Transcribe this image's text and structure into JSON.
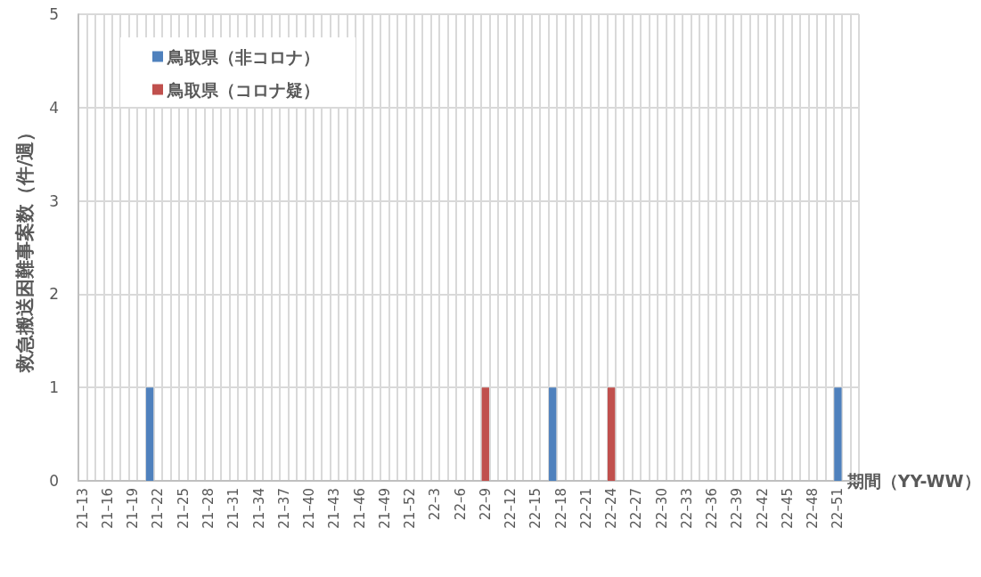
{
  "chart_data": {
    "type": "bar",
    "xlabel": "期間（YY-WW）",
    "ylabel": "救急搬送困難事案数（件/週）",
    "categories": [
      "21–13",
      null,
      null,
      "21–16",
      null,
      null,
      "21–19",
      null,
      null,
      "21–22",
      null,
      null,
      "21–25",
      null,
      null,
      "21–28",
      null,
      null,
      "21–31",
      null,
      null,
      "21–34",
      null,
      null,
      "21–37",
      null,
      null,
      "21–40",
      null,
      null,
      "21–43",
      null,
      null,
      "21–46",
      null,
      null,
      "21–49",
      null,
      null,
      "21–52",
      null,
      null,
      "22–3",
      null,
      null,
      "22–6",
      null,
      null,
      "22–9",
      null,
      null,
      "22–12",
      null,
      null,
      "22–15",
      null,
      null,
      "22–18",
      null,
      null,
      "22–21",
      null,
      null,
      "22–24",
      null,
      null,
      "22–27",
      null,
      null,
      "22–30",
      null,
      null,
      "22–33",
      null,
      null,
      "22–36",
      null,
      null,
      "22–39",
      null,
      null,
      "22–42",
      null,
      null,
      "22–45",
      null,
      null,
      "22–48",
      null,
      null,
      "22–51",
      null,
      null
    ],
    "series": [
      {
        "name": "鳥取県（非コロナ）",
        "color": "#4f81bd",
        "values": [
          0,
          0,
          0,
          0,
          0,
          0,
          0,
          0,
          1,
          0,
          0,
          0,
          0,
          0,
          0,
          0,
          0,
          0,
          0,
          0,
          0,
          0,
          0,
          0,
          0,
          0,
          0,
          0,
          0,
          0,
          0,
          0,
          0,
          0,
          0,
          0,
          0,
          0,
          0,
          0,
          0,
          0,
          0,
          0,
          0,
          0,
          0,
          0,
          0,
          0,
          0,
          0,
          0,
          0,
          0,
          0,
          1,
          0,
          0,
          0,
          0,
          0,
          0,
          0,
          0,
          0,
          0,
          0,
          0,
          0,
          0,
          0,
          0,
          0,
          0,
          0,
          0,
          0,
          0,
          0,
          0,
          0,
          0,
          0,
          0,
          0,
          0,
          0,
          0,
          0,
          1,
          0,
          0
        ]
      },
      {
        "name": "鳥取県（コロナ疑）",
        "color": "#c0504d",
        "values": [
          0,
          0,
          0,
          0,
          0,
          0,
          0,
          0,
          0,
          0,
          0,
          0,
          0,
          0,
          0,
          0,
          0,
          0,
          0,
          0,
          0,
          0,
          0,
          0,
          0,
          0,
          0,
          0,
          0,
          0,
          0,
          0,
          0,
          0,
          0,
          0,
          0,
          0,
          0,
          0,
          0,
          0,
          0,
          0,
          0,
          0,
          0,
          0,
          1,
          0,
          0,
          0,
          0,
          0,
          0,
          0,
          0,
          0,
          0,
          0,
          0,
          0,
          0,
          1,
          0,
          0,
          0,
          0,
          0,
          0,
          0,
          0,
          0,
          0,
          0,
          0,
          0,
          0,
          0,
          0,
          0,
          0,
          0,
          0,
          0,
          0,
          0,
          0,
          0,
          0,
          0,
          0,
          0
        ]
      }
    ],
    "stacked": true,
    "ylim": [
      0,
      5
    ],
    "yticks": [
      0,
      1,
      2,
      3,
      4,
      5
    ],
    "grid": true,
    "legend": "top left"
  }
}
